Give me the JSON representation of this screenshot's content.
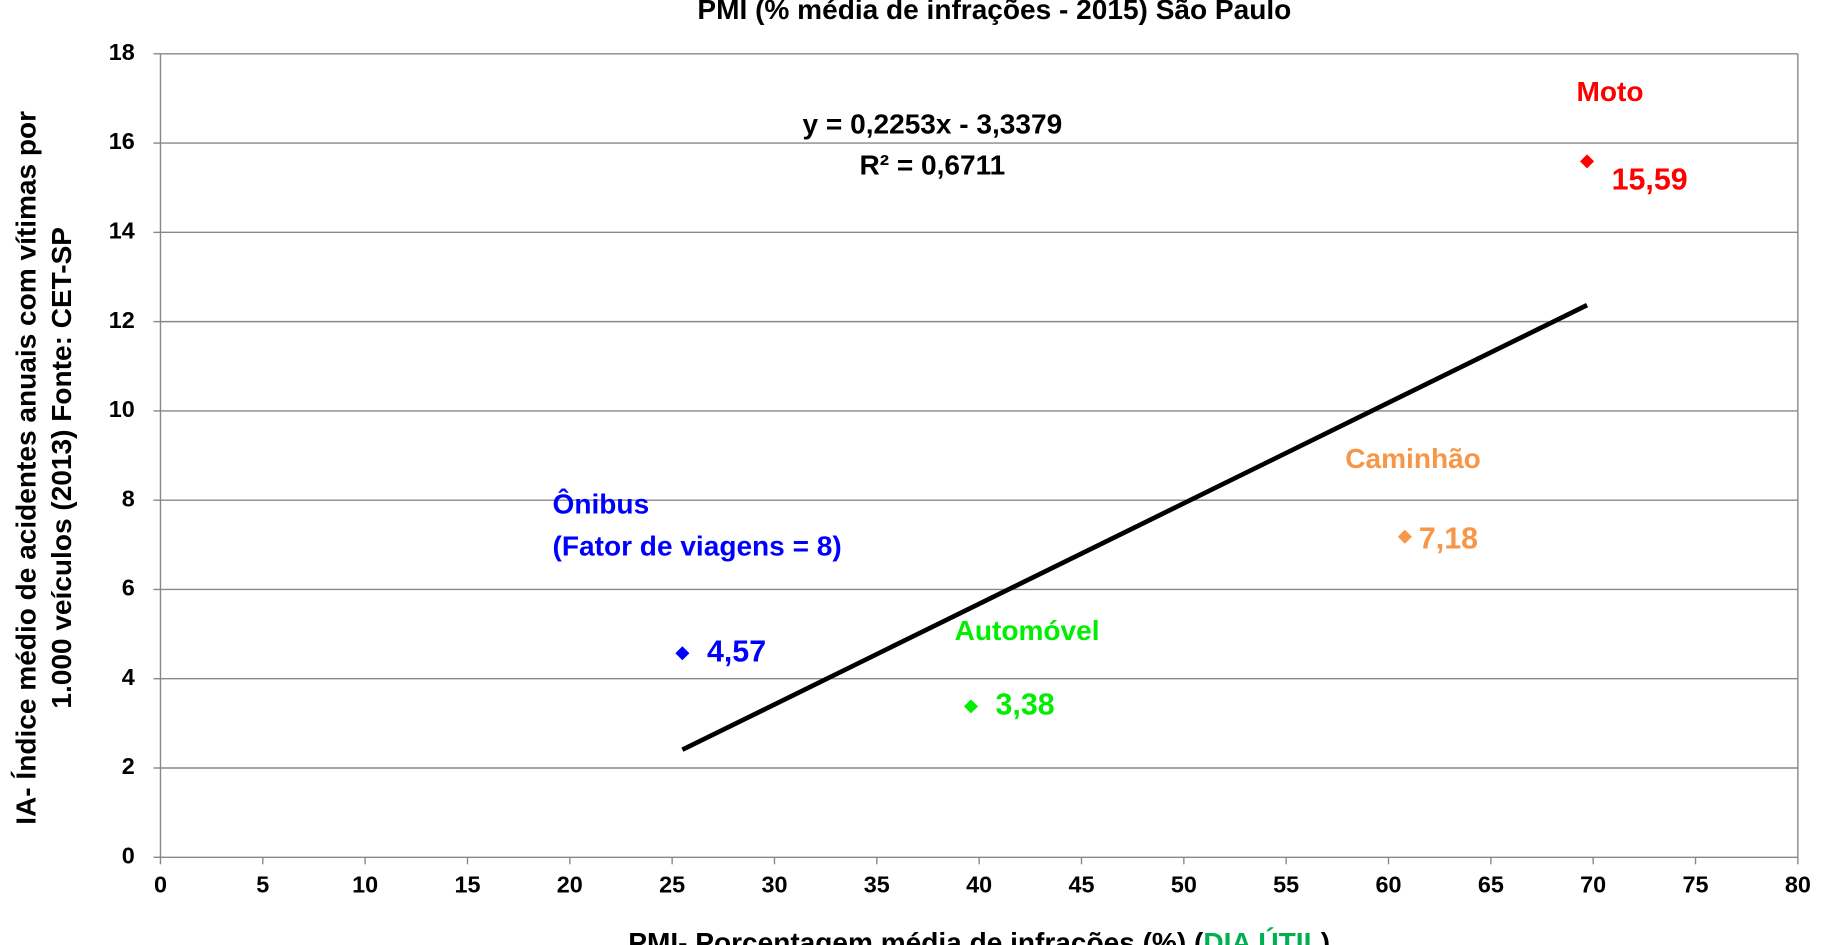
{
  "chart_data": {
    "type": "scatter",
    "title": "PMI (% média de infrações - 2015)  São Paulo",
    "x_label": [
      "PMI- Porcentagem média de infrações (%) (",
      "DIA ÚTIL",
      ")"
    ],
    "y_label": [
      "IA- Índice médio de acidentes anuais com vítimas por",
      "1.000 veículos (2013) Fonte: CET-SP"
    ],
    "series": [
      {
        "name": "Ônibus",
        "note": "(Fator de viagens = 8)",
        "color": "#0000ff",
        "x": [
          25.5
        ],
        "values": [
          4.57
        ],
        "value_labels": [
          "4,57"
        ]
      },
      {
        "name": "Automóvel",
        "color": "#00ee00",
        "x": [
          39.6
        ],
        "values": [
          3.38
        ],
        "value_labels": [
          "3,38"
        ]
      },
      {
        "name": "Caminhão",
        "color": "#f79646",
        "x": [
          60.8
        ],
        "values": [
          7.18
        ],
        "value_labels": [
          "7,18"
        ]
      },
      {
        "name": "Moto",
        "color": "#ff0000",
        "x": [
          69.7
        ],
        "values": [
          15.59
        ],
        "value_labels": [
          "15,59"
        ]
      }
    ],
    "trendline": {
      "x": [
        25.5,
        69.7
      ],
      "y": [
        2.41,
        12.37
      ],
      "equation": "y = 0,2253x - 3,3379",
      "r2": "R² = 0,6711",
      "color": "#000000"
    },
    "xlim": [
      0,
      80
    ],
    "xticks": [
      0,
      5,
      10,
      15,
      20,
      25,
      30,
      35,
      40,
      45,
      50,
      55,
      60,
      65,
      70,
      75,
      80
    ],
    "ylim": [
      0,
      18
    ],
    "yticks": [
      0,
      2,
      4,
      6,
      8,
      10,
      12,
      14,
      16,
      18
    ],
    "grid": true
  }
}
